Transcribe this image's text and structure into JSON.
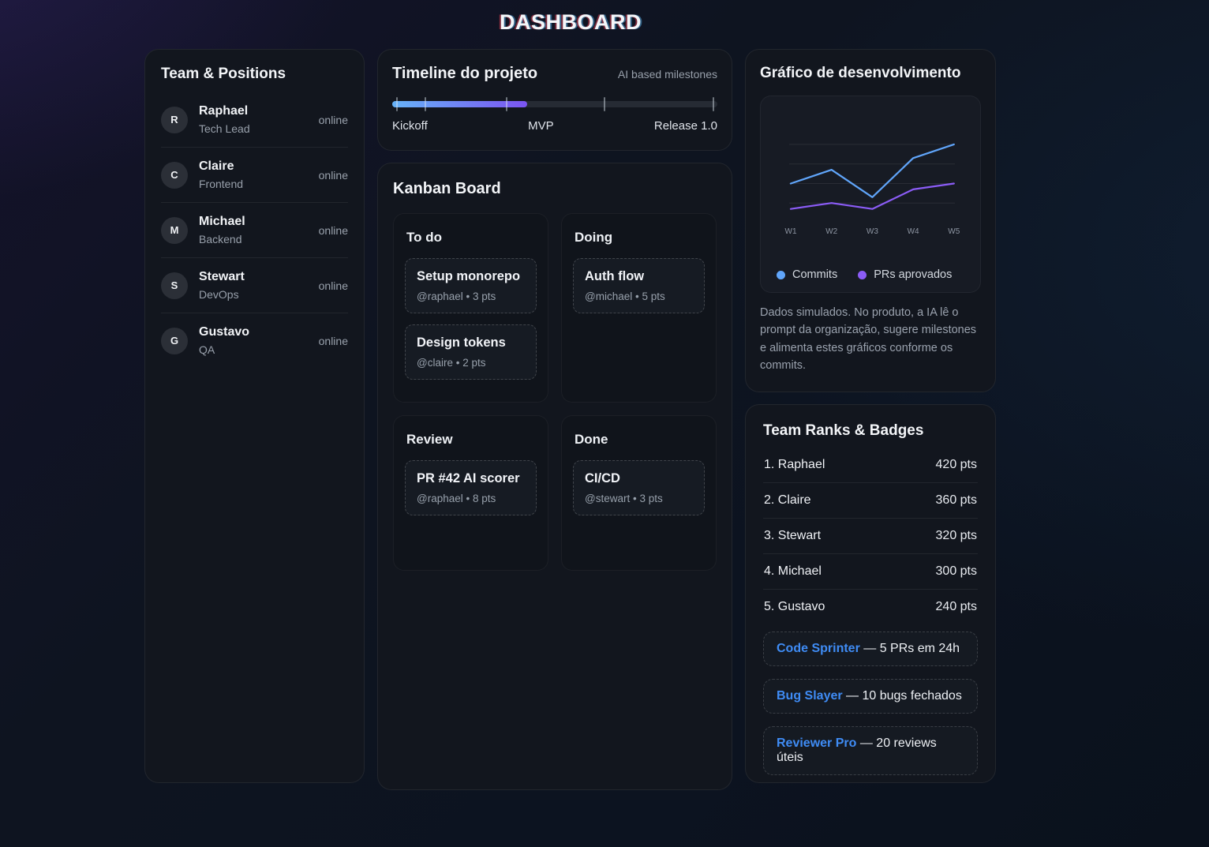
{
  "page": {
    "title": "DASHBOARD"
  },
  "team": {
    "title": "Team & Positions",
    "members": [
      {
        "initial": "R",
        "name": "Raphael",
        "role": "Tech Lead",
        "status": "online"
      },
      {
        "initial": "C",
        "name": "Claire",
        "role": "Frontend",
        "status": "online"
      },
      {
        "initial": "M",
        "name": "Michael",
        "role": "Backend",
        "status": "online"
      },
      {
        "initial": "S",
        "name": "Stewart",
        "role": "DevOps",
        "status": "online"
      },
      {
        "initial": "G",
        "name": "Gustavo",
        "role": "QA",
        "status": "online"
      }
    ]
  },
  "timeline": {
    "title": "Timeline do projeto",
    "subtitle": "AI based milestones",
    "progress_pct": 41.5,
    "tick_positions_pct": [
      1.2,
      10,
      35,
      65,
      98.5
    ],
    "milestones": [
      "Kickoff",
      "MVP",
      "Release 1.0"
    ]
  },
  "kanban": {
    "title": "Kanban Board",
    "columns": [
      {
        "title": "To do",
        "cards": [
          {
            "title": "Setup monorepo",
            "meta": "@raphael • 3 pts"
          },
          {
            "title": "Design tokens",
            "meta": "@claire • 2 pts"
          }
        ]
      },
      {
        "title": "Doing",
        "cards": [
          {
            "title": "Auth flow",
            "meta": "@michael • 5 pts"
          }
        ]
      },
      {
        "title": "Review",
        "cards": [
          {
            "title": "PR #42 AI scorer",
            "meta": "@raphael • 8 pts"
          }
        ]
      },
      {
        "title": "Done",
        "cards": [
          {
            "title": "CI/CD",
            "meta": "@stewart • 3 pts"
          }
        ]
      }
    ]
  },
  "chart_panel": {
    "title": "Gráfico de desenvolvimento",
    "description": "Dados simulados. No produto, a IA lê o prompt da organização, sugere milestones e alimenta estes gráficos conforme os commits."
  },
  "chart_data": {
    "type": "line",
    "title": "Gráfico de desenvolvimento",
    "x": [
      "W1",
      "W2",
      "W3",
      "W4",
      "W5"
    ],
    "series": [
      {
        "name": "Commits",
        "color": "#60a5fa",
        "values": [
          20,
          27,
          13,
          33,
          40
        ]
      },
      {
        "name": "PRs aprovados",
        "color": "#8b5cf6",
        "values": [
          7,
          10,
          7,
          17,
          20
        ]
      }
    ],
    "ylim": [
      0,
      44
    ],
    "gridline_values": [
      10,
      20,
      30,
      40
    ],
    "grid": "horizontal",
    "legend_position": "bottom"
  },
  "ranks": {
    "title": "Team Ranks & Badges",
    "rows": [
      {
        "name": "1. Raphael",
        "pts": "420 pts"
      },
      {
        "name": "2. Claire",
        "pts": "360 pts"
      },
      {
        "name": "3. Stewart",
        "pts": "320 pts"
      },
      {
        "name": "4. Michael",
        "pts": "300 pts"
      },
      {
        "name": "5. Gustavo",
        "pts": "240 pts"
      }
    ],
    "badges": [
      {
        "name": "Code Sprinter",
        "desc": "— 5 PRs em 24h"
      },
      {
        "name": "Bug Slayer",
        "desc": "— 10 bugs fechados"
      },
      {
        "name": "Reviewer Pro",
        "desc": "— 20 reviews úteis"
      }
    ]
  }
}
